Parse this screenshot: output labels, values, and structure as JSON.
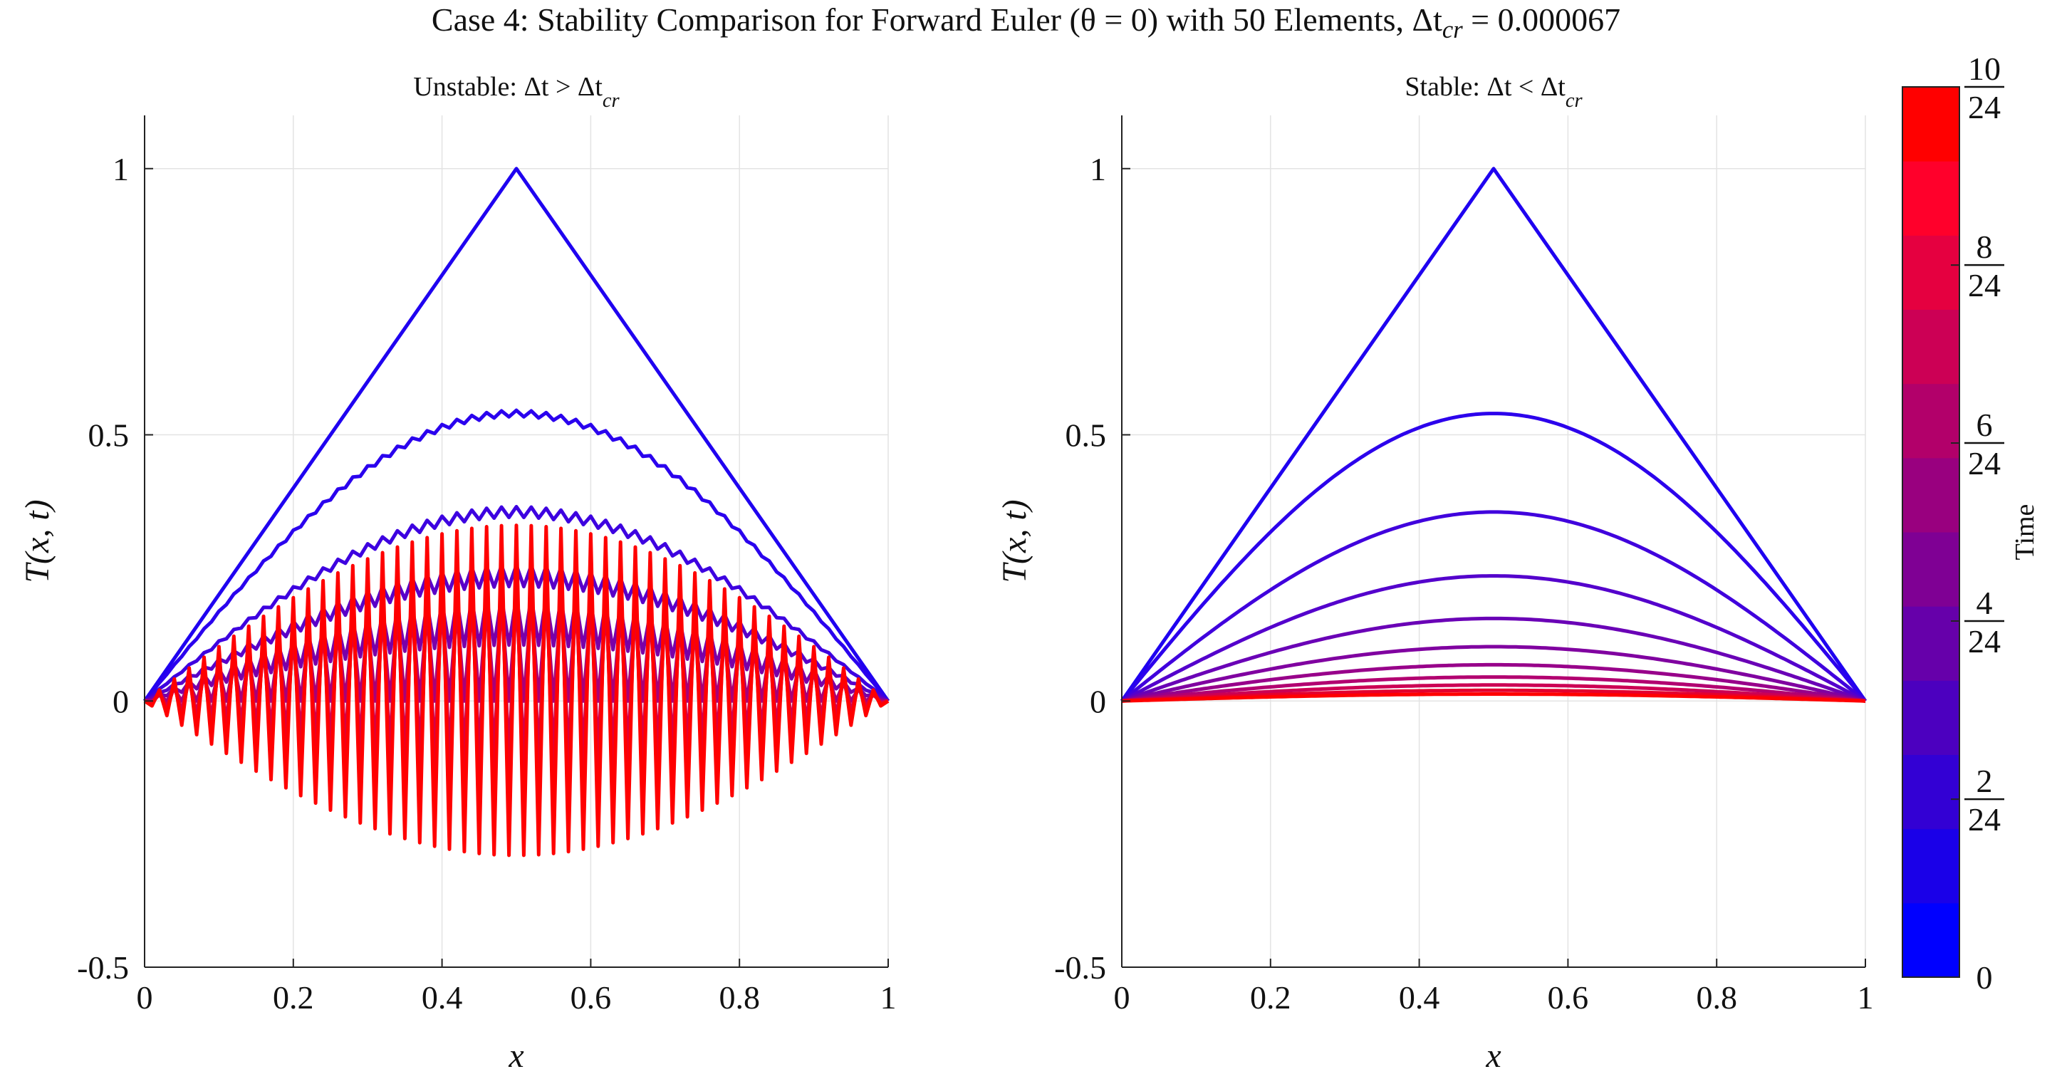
{
  "figure": {
    "title": "Case 4: Stability Comparison for Forward Euler (θ = 0) with 50 Elements, Δt_cr = 0.000067"
  },
  "chart_data": [
    {
      "type": "line",
      "title": "Unstable: Δt > Δt_cr",
      "xlabel": "x",
      "ylabel": "T(x, t)",
      "xlim": [
        0,
        1
      ],
      "ylim": [
        -0.5,
        1.1
      ],
      "x_ticks": [
        "0",
        "0.2",
        "0.4",
        "0.6",
        "0.8",
        "1"
      ],
      "y_ticks": [
        "-0.5",
        "0",
        "0.5",
        "1"
      ],
      "grid": true,
      "curves": [
        {
          "time_frac": 0.0,
          "color": "#1f00f0",
          "peak": 1.0,
          "shape": "triangle",
          "osc_amp": 0
        },
        {
          "time_frac": 0.1,
          "color": "#2a00ee",
          "peak": 0.54,
          "shape": "smooth",
          "osc_amp": 0.006
        },
        {
          "time_frac": 0.2,
          "color": "#3d00e0",
          "peak": 0.355,
          "shape": "smooth",
          "osc_amp": 0.01
        },
        {
          "time_frac": 0.3,
          "color": "#5a00c8",
          "peak": 0.235,
          "shape": "smooth",
          "osc_amp": 0.02
        },
        {
          "time_frac": 0.4,
          "color": "#7a00a8",
          "peak": 0.15,
          "shape": "smooth",
          "osc_amp": 0.045
        },
        {
          "time_frac": 0.55,
          "color": "#a80078",
          "peak": 0.09,
          "shape": "smooth",
          "osc_amp": 0.09
        },
        {
          "time_frac": 0.7,
          "color": "#d4004a",
          "peak": 0.05,
          "shape": "smooth",
          "osc_amp": 0.16
        },
        {
          "time_frac": 0.85,
          "color": "#ea0026",
          "peak": 0.03,
          "shape": "smooth",
          "osc_amp": 0.23
        },
        {
          "time_frac": 1.0,
          "color": "#ff0000",
          "peak": 0.02,
          "shape": "smooth",
          "osc_amp": 0.31
        }
      ]
    },
    {
      "type": "line",
      "title": "Stable: Δt < Δt_cr",
      "xlabel": "x",
      "ylabel": "T(x, t)",
      "xlim": [
        0,
        1
      ],
      "ylim": [
        -0.5,
        1.1
      ],
      "x_ticks": [
        "0",
        "0.2",
        "0.4",
        "0.6",
        "0.8",
        "1"
      ],
      "y_ticks": [
        "-0.5",
        "0",
        "0.5",
        "1"
      ],
      "grid": true,
      "curves": [
        {
          "time_frac": 0.0,
          "color": "#1f00f0",
          "peak": 1.0,
          "shape": "triangle"
        },
        {
          "time_frac": 0.1,
          "color": "#2c00ec",
          "peak": 0.54,
          "shape": "smooth"
        },
        {
          "time_frac": 0.2,
          "color": "#4000dd",
          "peak": 0.355,
          "shape": "smooth"
        },
        {
          "time_frac": 0.3,
          "color": "#5400cc",
          "peak": 0.235,
          "shape": "smooth"
        },
        {
          "time_frac": 0.4,
          "color": "#6a00b6",
          "peak": 0.155,
          "shape": "smooth"
        },
        {
          "time_frac": 0.5,
          "color": "#8000a0",
          "peak": 0.102,
          "shape": "smooth"
        },
        {
          "time_frac": 0.6,
          "color": "#98008a",
          "peak": 0.068,
          "shape": "smooth"
        },
        {
          "time_frac": 0.7,
          "color": "#b20070",
          "peak": 0.045,
          "shape": "smooth"
        },
        {
          "time_frac": 0.8,
          "color": "#cc0054",
          "peak": 0.03,
          "shape": "smooth"
        },
        {
          "time_frac": 0.9,
          "color": "#e4002e",
          "peak": 0.02,
          "shape": "smooth"
        },
        {
          "time_frac": 1.0,
          "color": "#ff0000",
          "peak": 0.013,
          "shape": "smooth"
        }
      ]
    }
  ],
  "colorbar": {
    "label": "Time",
    "range": [
      0,
      0.4167
    ],
    "tick_labels": [
      {
        "value": 0,
        "num": "0",
        "den": ""
      },
      {
        "value": 0.0833,
        "num": "2",
        "den": "24"
      },
      {
        "value": 0.1667,
        "num": "4",
        "den": "24"
      },
      {
        "value": 0.25,
        "num": "6",
        "den": "24"
      },
      {
        "value": 0.3333,
        "num": "8",
        "den": "24"
      },
      {
        "value": 0.4167,
        "num": "10",
        "den": "24"
      }
    ],
    "bands": [
      "#0000ff",
      "#1a00e8",
      "#3300d4",
      "#4c00bf",
      "#6600aa",
      "#7f0094",
      "#99007f",
      "#b2006a",
      "#cc0055",
      "#e50040",
      "#ff002b",
      "#ff0000"
    ]
  }
}
